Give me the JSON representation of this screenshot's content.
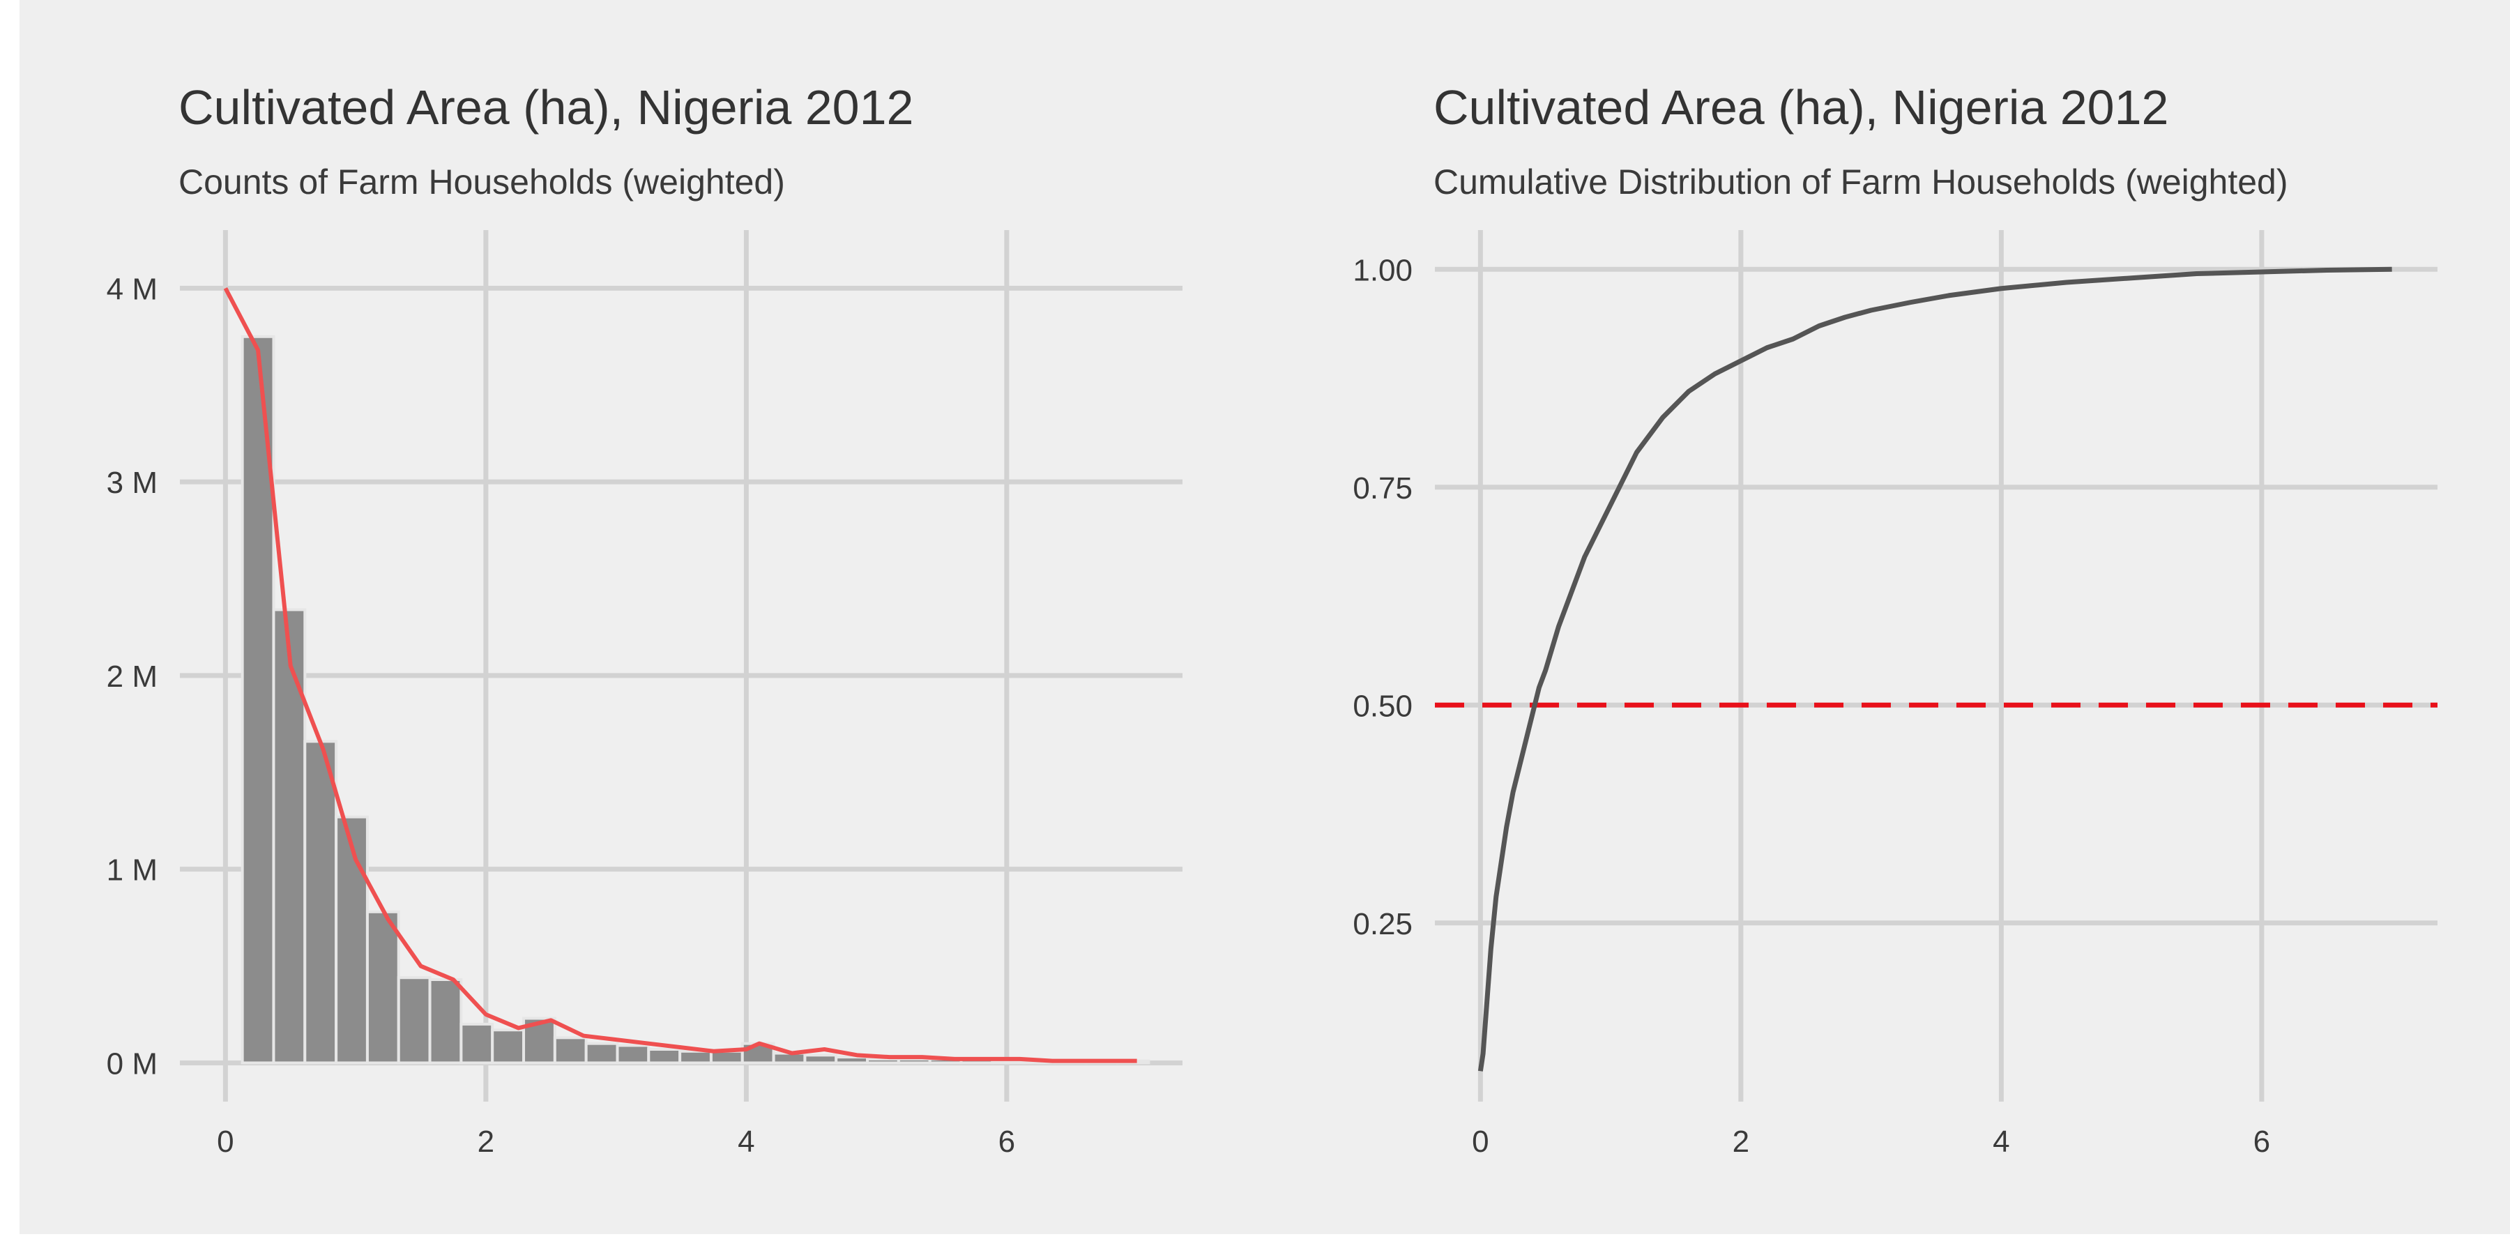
{
  "chart_data": [
    {
      "type": "bar",
      "title": "Cultivated Area (ha), Nigeria 2012",
      "subtitle": "Counts of Farm Households (weighted)",
      "xlabel": "",
      "ylabel": "",
      "xlim": [
        -0.35,
        7.35
      ],
      "ylim": [
        -0.2,
        4.3
      ],
      "x_ticks": [
        0,
        2,
        4,
        6
      ],
      "x_tick_labels": [
        "0",
        "2",
        "4",
        "6"
      ],
      "y_ticks": [
        0,
        1,
        2,
        3,
        4
      ],
      "y_tick_labels": [
        "0 M",
        "1 M",
        "2 M",
        "3 M",
        "4 M"
      ],
      "grid": true,
      "bar_width": 0.24,
      "bin_centers": [
        0.25,
        0.49,
        0.73,
        0.97,
        1.21,
        1.45,
        1.69,
        1.93,
        2.17,
        2.41,
        2.65,
        2.89,
        3.13,
        3.37,
        3.61,
        3.85,
        4.09,
        4.33,
        4.57,
        4.81,
        5.05,
        5.29,
        5.53,
        5.77,
        6.01,
        6.25,
        6.49,
        6.73,
        6.97
      ],
      "values": [
        3.75,
        2.34,
        1.66,
        1.27,
        0.78,
        0.44,
        0.43,
        0.2,
        0.17,
        0.23,
        0.13,
        0.1,
        0.09,
        0.07,
        0.06,
        0.06,
        0.1,
        0.05,
        0.04,
        0.03,
        0.02,
        0.02,
        0.02,
        0.02,
        0.01,
        0.01,
        0.01,
        0.01,
        0.01
      ],
      "series": [
        {
          "type": "line",
          "color": "#ef5050",
          "x": [
            0,
            0.25,
            0.5,
            0.75,
            1.0,
            1.25,
            1.5,
            1.75,
            2.0,
            2.25,
            2.5,
            2.75,
            3.0,
            3.25,
            3.5,
            3.75,
            4.0,
            4.1,
            4.35,
            4.6,
            4.85,
            5.1,
            5.35,
            5.6,
            5.85,
            6.1,
            6.35,
            6.6,
            7.0
          ],
          "y": [
            4.0,
            3.68,
            2.05,
            1.62,
            1.05,
            0.74,
            0.5,
            0.43,
            0.25,
            0.18,
            0.22,
            0.14,
            0.12,
            0.1,
            0.08,
            0.06,
            0.07,
            0.1,
            0.05,
            0.07,
            0.04,
            0.03,
            0.03,
            0.02,
            0.02,
            0.02,
            0.01,
            0.01,
            0.01
          ]
        }
      ]
    },
    {
      "type": "line",
      "title": "Cultivated Area (ha), Nigeria 2012",
      "subtitle": "Cumulative Distribution of Farm Households (weighted)",
      "xlabel": "",
      "ylabel": "",
      "xlim": [
        -0.35,
        7.35
      ],
      "ylim": [
        0.045,
        1.045
      ],
      "x_ticks": [
        0,
        2,
        4,
        6
      ],
      "x_tick_labels": [
        "0",
        "2",
        "4",
        "6"
      ],
      "y_ticks": [
        0.25,
        0.5,
        0.75,
        1.0
      ],
      "y_tick_labels": [
        "0.25",
        "0.50",
        "0.75",
        "1.00"
      ],
      "grid": true,
      "reference_line": {
        "y": 0.5,
        "color": "#e8101a",
        "style": "dashed"
      },
      "series": [
        {
          "color": "#555555",
          "x": [
            0,
            0.02,
            0.05,
            0.08,
            0.12,
            0.16,
            0.2,
            0.25,
            0.3,
            0.35,
            0.4,
            0.45,
            0.5,
            0.6,
            0.7,
            0.8,
            0.9,
            1.0,
            1.1,
            1.2,
            1.3,
            1.4,
            1.5,
            1.6,
            1.7,
            1.8,
            2.0,
            2.2,
            2.4,
            2.6,
            2.8,
            3.0,
            3.3,
            3.6,
            4.0,
            4.5,
            5.0,
            5.5,
            6.0,
            6.5,
            7.0
          ],
          "y": [
            0.08,
            0.1,
            0.16,
            0.22,
            0.28,
            0.32,
            0.36,
            0.4,
            0.43,
            0.46,
            0.49,
            0.52,
            0.54,
            0.59,
            0.63,
            0.67,
            0.7,
            0.73,
            0.76,
            0.79,
            0.81,
            0.83,
            0.845,
            0.86,
            0.87,
            0.88,
            0.895,
            0.91,
            0.92,
            0.935,
            0.945,
            0.953,
            0.962,
            0.97,
            0.978,
            0.985,
            0.99,
            0.995,
            0.997,
            0.999,
            1.0
          ]
        }
      ]
    }
  ]
}
